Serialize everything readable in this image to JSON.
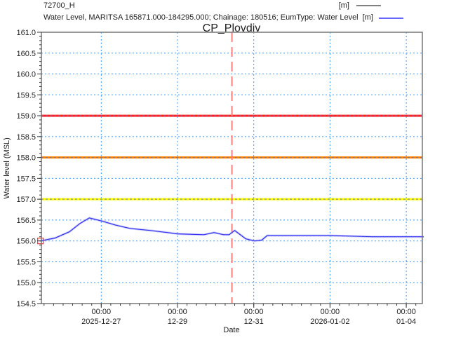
{
  "chart_data": {
    "type": "line",
    "title": "CP_Plovdiv",
    "xlabel": "Date",
    "ylabel": "Water level (MSL)",
    "ylim": [
      154.5,
      161.0
    ],
    "xlim": [
      "2025-12-25T09:45",
      "2026-01-04T11:00"
    ],
    "yticks": [
      "154.5",
      "155.0",
      "155.5",
      "156.0",
      "156.5",
      "157.0",
      "157.5",
      "158.0",
      "158.5",
      "159.0",
      "159.5",
      "160.0",
      "160.5",
      "161.0"
    ],
    "xticks": [
      {
        "t": "2025-12-27T00:00",
        "line1": "00:00",
        "line2": "2025-12-27"
      },
      {
        "t": "2025-12-29T00:00",
        "line1": "00:00",
        "line2": "12-29"
      },
      {
        "t": "2025-12-31T00:00",
        "line1": "00:00",
        "line2": "12-31"
      },
      {
        "t": "2026-01-02T00:00",
        "line1": "00:00",
        "line2": "2026-01-02"
      },
      {
        "t": "2026-01-04T00:00",
        "line1": "00:00",
        "line2": "01-04"
      }
    ],
    "grid": true,
    "legend": {
      "placement": "top",
      "entries": [
        {
          "label": "72700_H",
          "unit": "[m]",
          "color": "#000000"
        },
        {
          "label": "Water Level, MARITSA 165871.000-184295.000; Chainage: 180516; EumType: Water Level",
          "unit": "[m]",
          "color": "#6666ff"
        }
      ]
    },
    "series": [
      {
        "name": "Water Level, MARITSA 165871.000-184295.000; Chainage: 180516; EumType: Water Level",
        "color": "#3333ee",
        "points": [
          [
            "2025-12-25T09:45",
            156.0
          ],
          [
            "2025-12-25T19:00",
            156.07
          ],
          [
            "2025-12-26T04:00",
            156.22
          ],
          [
            "2025-12-26T10:40",
            156.42
          ],
          [
            "2025-12-26T16:30",
            156.55
          ],
          [
            "2025-12-27T00:00",
            156.48
          ],
          [
            "2025-12-27T09:00",
            156.38
          ],
          [
            "2025-12-27T18:00",
            156.3
          ],
          [
            "2025-12-28T07:00",
            156.25
          ],
          [
            "2025-12-28T18:00",
            156.2
          ],
          [
            "2025-12-29T00:00",
            156.17
          ],
          [
            "2025-12-29T16:30",
            156.15
          ],
          [
            "2025-12-29T23:00",
            156.2
          ],
          [
            "2025-12-30T05:00",
            156.15
          ],
          [
            "2025-12-30T08:30",
            156.15
          ],
          [
            "2025-12-30T12:00",
            156.25
          ],
          [
            "2025-12-30T19:00",
            156.05
          ],
          [
            "2025-12-31T00:30",
            156.0
          ],
          [
            "2025-12-31T05:00",
            156.02
          ],
          [
            "2025-12-31T08:30",
            156.13
          ],
          [
            "2026-01-02T00:00",
            156.13
          ],
          [
            "2026-01-03T03:00",
            156.1
          ],
          [
            "2026-01-04T11:00",
            156.1
          ]
        ]
      }
    ],
    "reference_lines": [
      {
        "y": 159.0,
        "color": "#ff2020"
      },
      {
        "y": 158.0,
        "color": "#ff8000"
      },
      {
        "y": 157.0,
        "color": "#ffff00"
      }
    ],
    "time_marker": {
      "t": "2025-12-30T10:15",
      "color": "#ff8080"
    },
    "start_marker": {
      "t": "2025-12-25T09:45",
      "y": 156.0,
      "color": "#ff3030"
    }
  }
}
